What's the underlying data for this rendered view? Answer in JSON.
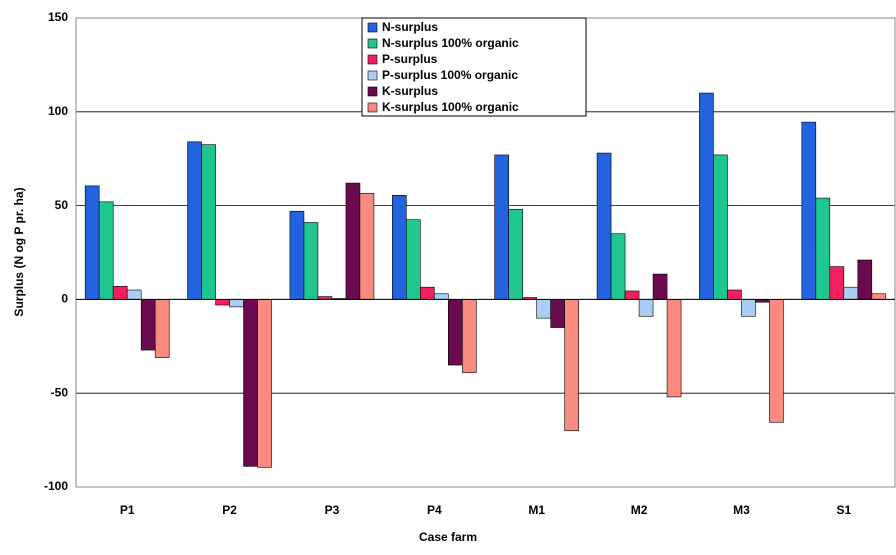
{
  "chart_data": {
    "type": "bar",
    "x_label": "Case farm",
    "y_label": "Surplus (N og P pr. ha)",
    "categories": [
      "P1",
      "P2",
      "P3",
      "P4",
      "M1",
      "M2",
      "M3",
      "S1"
    ],
    "series": [
      {
        "name": "N-surplus",
        "color": "#2463e0",
        "values": [
          60.5,
          84,
          47,
          55.5,
          77,
          78,
          110,
          94.5
        ]
      },
      {
        "name": "N-surplus 100% organic",
        "color": "#1fc78e",
        "values": [
          52,
          82.5,
          41,
          42.5,
          48,
          35,
          77,
          54
        ]
      },
      {
        "name": "P-surplus",
        "color": "#f2205e",
        "values": [
          7,
          -3,
          1.5,
          6.5,
          1,
          4.5,
          5,
          17.5
        ]
      },
      {
        "name": "P-surplus 100% organic",
        "color": "#a9cdf5",
        "values": [
          5,
          -4,
          0.5,
          3,
          -10,
          -9,
          -9,
          6.5
        ]
      },
      {
        "name": "K-surplus",
        "color": "#6a0b50",
        "values": [
          -27,
          -89,
          62,
          -35,
          -15,
          13.5,
          -1.5,
          21
        ]
      },
      {
        "name": "K-surplus 100% organic",
        "color": "#f98a80",
        "values": [
          -31,
          -89.5,
          56.5,
          -39,
          -70,
          -52,
          -65.5,
          3
        ]
      }
    ],
    "ylim": [
      -100,
      150
    ],
    "yticks": [
      -100,
      -50,
      0,
      50,
      100,
      150
    ],
    "grid": true
  }
}
